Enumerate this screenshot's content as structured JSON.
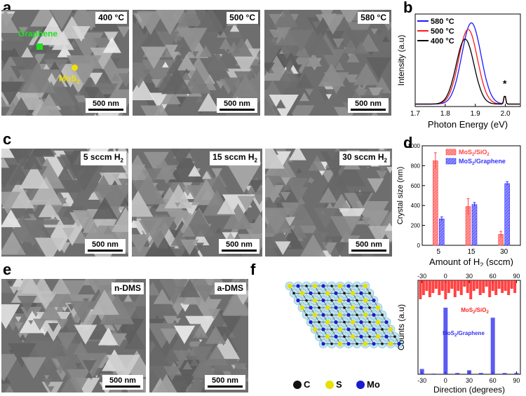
{
  "panel_labels": [
    "a",
    "b",
    "c",
    "d",
    "e",
    "f"
  ],
  "panel_a": {
    "images": [
      {
        "temp": "400 °C",
        "scale": "500 nm"
      },
      {
        "temp": "500 °C",
        "scale": "500 nm"
      },
      {
        "temp": "580 °C",
        "scale": "500 nm"
      }
    ],
    "annotation_graphene": "Graphene",
    "annotation_mos2": "MoS",
    "annotation_mos2_sub": "2",
    "colors": {
      "graphene": "#22dd22",
      "mos2": "#f0e000"
    }
  },
  "panel_c": {
    "images": [
      {
        "flow": "5 sccm H",
        "sub": "2",
        "scale": "500 nm"
      },
      {
        "flow": "15 sccm H",
        "sub": "2",
        "scale": "500 nm"
      },
      {
        "flow": "30 sccm H",
        "sub": "2",
        "scale": "500 nm"
      }
    ]
  },
  "panel_e": {
    "images": [
      {
        "label": "n-DMS",
        "scale": "500 nm"
      },
      {
        "label": "a-DMS",
        "scale": "500 nm"
      }
    ]
  },
  "panel_f": {
    "legend": [
      {
        "symbol": "C",
        "color": "#111111"
      },
      {
        "symbol": "S",
        "color": "#e8e000"
      },
      {
        "symbol": "Mo",
        "color": "#1a1ad0"
      }
    ]
  },
  "chart_data": [
    {
      "id": "b",
      "type": "line",
      "xlabel": "Photon Energy (eV)",
      "ylabel": "Intensity (a.u)",
      "xlim": [
        1.7,
        2.05
      ],
      "xticks": [
        "1.7",
        "1.8",
        "1.9",
        "2.0"
      ],
      "xtick_values": [
        1.7,
        1.8,
        1.9,
        2.0
      ],
      "annotation": "*",
      "series": [
        {
          "name": "580 °C",
          "color": "#1a1aff",
          "peak_x": 1.887,
          "peak_y": 1.0,
          "width": 0.045
        },
        {
          "name": "500 °C",
          "color": "#ff1a1a",
          "peak_x": 1.876,
          "peak_y": 0.92,
          "width": 0.044
        },
        {
          "name": "400 °C",
          "color": "#000000",
          "peak_x": 1.866,
          "peak_y": 0.8,
          "width": 0.042
        }
      ]
    },
    {
      "id": "d",
      "type": "bar",
      "xlabel": "Amount of H",
      "xlabel_sub": "2",
      "xlabel_tail": " (sccm)",
      "ylabel": "Crystal size (nm)",
      "ylim": [
        0,
        1000
      ],
      "yticks": [
        "0",
        "200",
        "400",
        "600",
        "800",
        "1000"
      ],
      "ytick_values": [
        0,
        200,
        400,
        600,
        800,
        1000
      ],
      "categories": [
        "5",
        "15",
        "30"
      ],
      "series": [
        {
          "name": "MoS2/SiO2",
          "label_main": "MoS",
          "label_sub": "2",
          "label_tail": "/SiO",
          "label_sub2": "2",
          "color": "#ff4444",
          "values": [
            850,
            390,
            110
          ],
          "errors": [
            80,
            80,
            30
          ]
        },
        {
          "name": "MoS2/Graphene",
          "label_main": "MoS",
          "label_sub": "2",
          "label_tail": "/Graphene",
          "label_sub2": "",
          "color": "#3333ff",
          "values": [
            265,
            410,
            620
          ],
          "errors": [
            20,
            20,
            20
          ]
        }
      ]
    },
    {
      "id": "f-hist",
      "type": "bar",
      "xlabel": "Direction (degrees)",
      "ylabel": "Counts (a.u)",
      "xlim": [
        -35,
        95
      ],
      "xticks": [
        "-30",
        "0",
        "30",
        "60",
        "90"
      ],
      "xtick_values": [
        -30,
        0,
        30,
        60,
        90
      ],
      "series": [
        {
          "name": "MoS2/SiO2",
          "label_main": "MoS",
          "label_sub": "2",
          "label_tail": "/SiO",
          "label_sub2": "2",
          "color": "#ff2222",
          "orientation": "down",
          "x": [
            -32,
            -28,
            -24,
            -20,
            -16,
            -12,
            -8,
            -4,
            0,
            4,
            8,
            12,
            16,
            20,
            24,
            28,
            32,
            36,
            40,
            44,
            48,
            52,
            56,
            60,
            64,
            68,
            72,
            76,
            80,
            84,
            88
          ],
          "values": [
            0.9,
            0.7,
            0.5,
            0.8,
            0.6,
            0.4,
            0.7,
            0.5,
            0.9,
            0.6,
            0.4,
            0.8,
            0.5,
            0.7,
            0.3,
            0.6,
            0.9,
            0.5,
            0.4,
            0.7,
            0.6,
            0.3,
            0.8,
            0.5,
            0.7,
            0.4,
            0.6,
            0.5,
            0.7,
            0.4,
            0.6
          ]
        },
        {
          "name": "MoS2/Graphene",
          "label_main": "MoS",
          "label_sub": "2",
          "label_tail": "/Graphene",
          "label_sub2": "",
          "color": "#3333ee",
          "orientation": "up",
          "x": [
            -30,
            -15,
            0,
            15,
            30,
            45,
            60,
            75,
            90
          ],
          "values": [
            0.08,
            0.01,
            1.0,
            0.02,
            0.06,
            0.02,
            0.85,
            0.02,
            0.02
          ]
        }
      ]
    }
  ]
}
